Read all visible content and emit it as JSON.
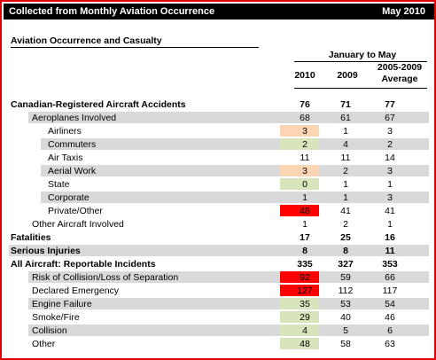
{
  "header": {
    "left_title": "Collected from Monthly Aviation Occurrence",
    "right_title": "May 2010"
  },
  "section_title": "Aviation Occurrence and Casualty",
  "period_label": "January to May",
  "columns": {
    "c2010": "2010",
    "c2009": "2009",
    "avg_line1": "2005-2009",
    "avg_line2": "Average"
  },
  "colors": {
    "frame": "#e00000",
    "header_bg": "#000000",
    "band_gray": "#d9d9d9",
    "cell_green": "#d8e4bc",
    "cell_peach": "#fcd5b4",
    "cell_red": "#ff0000"
  },
  "rows": [
    {
      "label": "Canadian-Registered Aircraft Accidents",
      "v2010": "76",
      "v2009": "71",
      "avg": "77",
      "level": 0,
      "bold": true,
      "band": false,
      "cell": ""
    },
    {
      "label": "Aeroplanes Involved",
      "v2010": "68",
      "v2009": "61",
      "avg": "67",
      "level": 1,
      "bold": false,
      "band": true,
      "cell": ""
    },
    {
      "label": "Airliners",
      "v2010": "3",
      "v2009": "1",
      "avg": "3",
      "level": 2,
      "bold": false,
      "band": false,
      "cell": "peach"
    },
    {
      "label": "Commuters",
      "v2010": "2",
      "v2009": "4",
      "avg": "2",
      "level": 2,
      "bold": false,
      "band": true,
      "cell": "green"
    },
    {
      "label": "Air Taxis",
      "v2010": "11",
      "v2009": "11",
      "avg": "14",
      "level": 2,
      "bold": false,
      "band": false,
      "cell": ""
    },
    {
      "label": "Aerial Work",
      "v2010": "3",
      "v2009": "2",
      "avg": "3",
      "level": 2,
      "bold": false,
      "band": true,
      "cell": "peach"
    },
    {
      "label": "State",
      "v2010": "0",
      "v2009": "1",
      "avg": "1",
      "level": 2,
      "bold": false,
      "band": false,
      "cell": "green"
    },
    {
      "label": "Corporate",
      "v2010": "1",
      "v2009": "1",
      "avg": "3",
      "level": 2,
      "bold": false,
      "band": true,
      "cell": ""
    },
    {
      "label": "Private/Other",
      "v2010": "48",
      "v2009": "41",
      "avg": "41",
      "level": 2,
      "bold": false,
      "band": false,
      "cell": "red"
    },
    {
      "label": "Other Aircraft Involved",
      "v2010": "1",
      "v2009": "2",
      "avg": "1",
      "level": 1,
      "bold": false,
      "band": false,
      "cell": ""
    },
    {
      "label": "Fatalities",
      "v2010": "17",
      "v2009": "25",
      "avg": "16",
      "level": 0,
      "bold": true,
      "band": false,
      "cell": ""
    },
    {
      "label": "Serious Injuries",
      "v2010": "8",
      "v2009": "8",
      "avg": "11",
      "level": 0,
      "bold": true,
      "band": true,
      "cell": ""
    },
    {
      "label": "All Aircraft: Reportable Incidents",
      "v2010": "335",
      "v2009": "327",
      "avg": "353",
      "level": 0,
      "bold": true,
      "band": false,
      "cell": ""
    },
    {
      "label": "Risk of Collision/Loss of Separation",
      "v2010": "92",
      "v2009": "59",
      "avg": "66",
      "level": 1,
      "bold": false,
      "band": true,
      "cell": "red"
    },
    {
      "label": "Declared Emergency",
      "v2010": "127",
      "v2009": "112",
      "avg": "117",
      "level": 1,
      "bold": false,
      "band": false,
      "cell": "red"
    },
    {
      "label": "Engine Failure",
      "v2010": "35",
      "v2009": "53",
      "avg": "54",
      "level": 1,
      "bold": false,
      "band": true,
      "cell": "green"
    },
    {
      "label": "Smoke/Fire",
      "v2010": "29",
      "v2009": "40",
      "avg": "46",
      "level": 1,
      "bold": false,
      "band": false,
      "cell": "green"
    },
    {
      "label": "Collision",
      "v2010": "4",
      "v2009": "5",
      "avg": "6",
      "level": 1,
      "bold": false,
      "band": true,
      "cell": "green"
    },
    {
      "label": "Other",
      "v2010": "48",
      "v2009": "58",
      "avg": "63",
      "level": 1,
      "bold": false,
      "band": false,
      "cell": "green"
    }
  ]
}
